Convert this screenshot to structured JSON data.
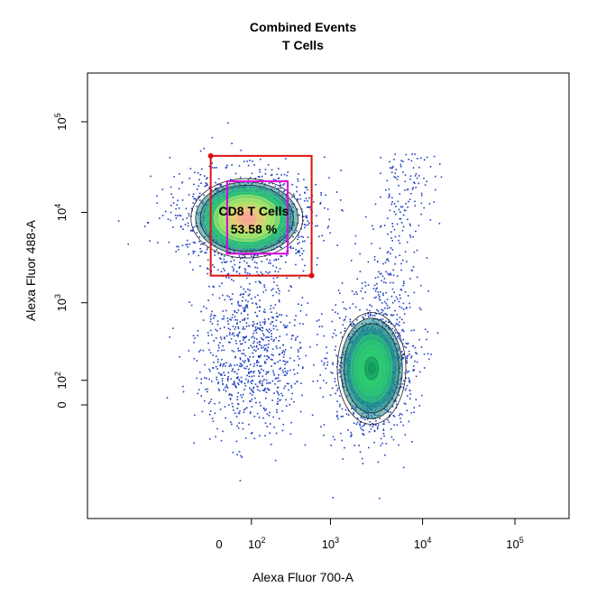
{
  "chart_data": {
    "type": "scatter",
    "title": "Combined Events",
    "subtitle": "T Cells",
    "xlabel": "Alexa Fluor 700-A",
    "ylabel": "Alexa Fluor 488-A",
    "x_scale": "biexponential (logicle)",
    "y_scale": "biexponential (logicle)",
    "x_ticks": [
      "0",
      "10^2",
      "10^3",
      "10^4",
      "10^5"
    ],
    "y_ticks": [
      "0",
      "10^2",
      "10^3",
      "10^4",
      "10^5"
    ],
    "grid": false,
    "point_color": "#1f3fbf",
    "contour_colormap": [
      "#1a8a8a",
      "#2ecc71",
      "#b7e86a",
      "#f3c57a",
      "#ff9f9f"
    ],
    "populations": [
      {
        "center_x": 80,
        "center_y": 9000,
        "density": "high"
      },
      {
        "center_x": 2800,
        "center_y": 160,
        "density": "high"
      },
      {
        "center_x": 100,
        "center_y": 170,
        "density": "low"
      }
    ],
    "gates": [
      {
        "label": "",
        "shape": "rectangle",
        "color": "#dd1111",
        "x_range": [
          -60,
          620
        ],
        "y_range": [
          2000,
          42000
        ]
      },
      {
        "label": "CD8 T Cells",
        "percent": "53.58 %",
        "shape": "rectangle",
        "color": "#dd00dd",
        "x_range": [
          3,
          330
        ],
        "y_range": [
          3500,
          22000
        ]
      }
    ]
  }
}
